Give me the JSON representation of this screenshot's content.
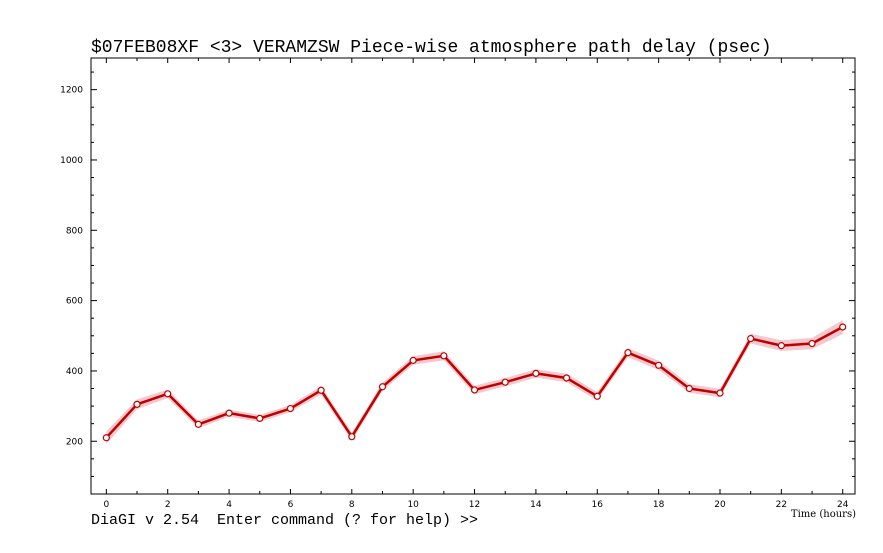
{
  "window": {
    "status_line": "DiaGI v 2.54  Enter command (? for help) >>"
  },
  "chart_data": {
    "type": "line",
    "title": "$07FEB08XF <3>  VERAMZSW  Piece-wise atmosphere path delay (psec)",
    "xlabel": "Time (hours)",
    "ylabel": "",
    "xlim": [
      -0.5,
      24.4
    ],
    "ylim": [
      50,
      1290
    ],
    "xticks": [
      0,
      2,
      4,
      6,
      8,
      10,
      12,
      14,
      16,
      18,
      20,
      22,
      24
    ],
    "yticks": [
      200,
      400,
      600,
      800,
      1000,
      1200
    ],
    "grid": false,
    "line_color": "#c00000",
    "band_color": "#f4c8cc",
    "series": [
      {
        "x": [
          0,
          1,
          2,
          3,
          4,
          5,
          6,
          7,
          8,
          9,
          10,
          11,
          12,
          13,
          14,
          15,
          16,
          17,
          18,
          19,
          20,
          21,
          22,
          23,
          24
        ],
        "y": [
          210,
          305,
          335,
          248,
          280,
          265,
          293,
          345,
          213,
          355,
          430,
          443,
          346,
          368,
          393,
          380,
          328,
          452,
          416,
          350,
          337,
          492,
          472,
          478,
          525
        ],
        "err": [
          18,
          14,
          12,
          11,
          10,
          10,
          10,
          12,
          12,
          12,
          12,
          13,
          12,
          12,
          12,
          12,
          12,
          13,
          13,
          12,
          12,
          14,
          15,
          16,
          20
        ]
      }
    ]
  }
}
